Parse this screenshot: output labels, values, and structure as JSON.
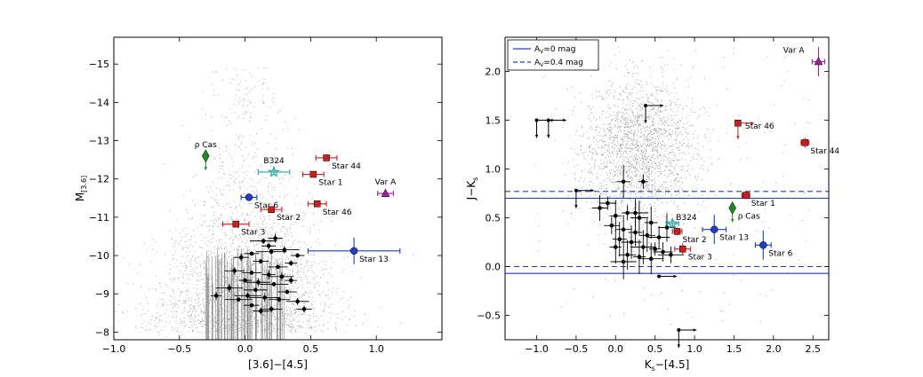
{
  "chart_data": [
    {
      "type": "scatter",
      "panel": "left",
      "xlabel": "[3.6]−[4.5]",
      "ylabel": "M",
      "ylabel_sub": "[3.6]",
      "xlim": [
        -1.0,
        1.5
      ],
      "ylim": [
        -7.8,
        -15.7
      ],
      "y_inverted": true,
      "xticks": [
        -1.0,
        -0.5,
        0.0,
        0.5,
        1.0
      ],
      "xtick_labels": [
        "−1.0",
        "−0.5",
        "0.0",
        "0.5",
        "1.0"
      ],
      "yticks": [
        -8,
        -9,
        -10,
        -11,
        -12,
        -13,
        -14,
        -15
      ],
      "ytick_labels": [
        "−8",
        "−9",
        "−10",
        "−11",
        "−12",
        "−13",
        "−14",
        "−15"
      ],
      "background": {
        "name": "field stars",
        "color": "#9a9a9a",
        "center_x": 0.0,
        "center_y": -9.5,
        "approx_count": 2600
      },
      "black_sources": {
        "name": "unlabeled variables",
        "color": "#000000",
        "points": [
          [
            0.23,
            -10.45
          ],
          [
            0.14,
            -10.38
          ],
          [
            0.05,
            -10.05
          ],
          [
            0.2,
            -10.1
          ],
          [
            0.3,
            -10.15
          ],
          [
            0.4,
            -10.0
          ],
          [
            -0.03,
            -9.95
          ],
          [
            0.12,
            -9.85
          ],
          [
            0.25,
            -9.7
          ],
          [
            0.35,
            -9.8
          ],
          [
            -0.08,
            -9.6
          ],
          [
            0.05,
            -9.55
          ],
          [
            0.18,
            -9.5
          ],
          [
            0.28,
            -9.45
          ],
          [
            0.0,
            -9.35
          ],
          [
            0.1,
            -9.3
          ],
          [
            0.22,
            -9.25
          ],
          [
            -0.12,
            -9.15
          ],
          [
            0.08,
            -9.1
          ],
          [
            0.32,
            -9.05
          ],
          [
            0.02,
            -8.95
          ],
          [
            0.15,
            -8.9
          ],
          [
            -0.22,
            -8.95
          ],
          [
            0.26,
            -8.85
          ],
          [
            0.4,
            -8.8
          ],
          [
            0.05,
            -8.7
          ],
          [
            0.2,
            -8.6
          ],
          [
            0.12,
            -8.55
          ],
          [
            0.45,
            -8.6
          ],
          [
            -0.05,
            -8.85
          ],
          [
            0.35,
            -9.35
          ],
          [
            0.18,
            -10.25
          ]
        ]
      },
      "highlighted": [
        {
          "label": "ρ Cas",
          "x": -0.3,
          "y": -12.6,
          "xerr": 0.0,
          "yerr": 0.0,
          "color": "#1f8a1f",
          "marker": "diamond",
          "arrow": "down",
          "label_pos": "top"
        },
        {
          "label": "B324",
          "x": 0.22,
          "y": -12.18,
          "xerr": 0.12,
          "yerr": 0.08,
          "color": "#27aaa5",
          "marker": "star",
          "label_pos": "top"
        },
        {
          "label": "Star 44",
          "x": 0.62,
          "y": -12.55,
          "xerr": 0.08,
          "yerr": 0.06,
          "color": "#cc1f1f",
          "marker": "square",
          "label_pos": "below-right"
        },
        {
          "label": "Star 1",
          "x": 0.52,
          "y": -12.12,
          "xerr": 0.08,
          "yerr": 0.06,
          "color": "#cc1f1f",
          "marker": "square",
          "label_pos": "below-right"
        },
        {
          "label": "Star 6",
          "x": 0.03,
          "y": -11.52,
          "xerr": 0.06,
          "yerr": 0.06,
          "color": "#1f3ccc",
          "marker": "circle",
          "label_pos": "below-right"
        },
        {
          "label": "Star 2",
          "x": 0.2,
          "y": -11.2,
          "xerr": 0.08,
          "yerr": 0.06,
          "color": "#cc1f1f",
          "marker": "square",
          "label_pos": "below-right"
        },
        {
          "label": "Star 46",
          "x": 0.55,
          "y": -11.35,
          "xerr": 0.07,
          "yerr": 0.06,
          "color": "#cc1f1f",
          "marker": "square",
          "label_pos": "below-right"
        },
        {
          "label": "Var A",
          "x": 1.07,
          "y": -11.62,
          "xerr": 0.06,
          "yerr": 0.1,
          "color": "#a020a0",
          "marker": "triangle",
          "label_pos": "top"
        },
        {
          "label": "Star 3",
          "x": -0.07,
          "y": -10.82,
          "xerr": 0.1,
          "yerr": 0.06,
          "color": "#cc1f1f",
          "marker": "square",
          "label_pos": "below-right"
        },
        {
          "label": "Star 13",
          "x": 0.83,
          "y": -10.12,
          "xerr": 0.35,
          "yerr": 0.35,
          "color": "#1f3ccc",
          "marker": "circle",
          "label_pos": "below-right"
        }
      ]
    },
    {
      "type": "scatter",
      "panel": "right",
      "xlabel": "K",
      "xlabel_sub": "s",
      "xlabel_rest": "−[4.5]",
      "ylabel": "J−K",
      "ylabel_sub": "s",
      "xlim": [
        -1.4,
        2.7
      ],
      "ylim": [
        -0.75,
        2.35
      ],
      "xticks": [
        -1.0,
        -0.5,
        0.0,
        0.5,
        1.0,
        1.5,
        2.0,
        2.5
      ],
      "xtick_labels": [
        "−1.0",
        "−0.5",
        "0.0",
        "0.5",
        "1.0",
        "1.5",
        "2.0",
        "2.5"
      ],
      "yticks": [
        -0.5,
        0.0,
        0.5,
        1.0,
        1.5,
        2.0
      ],
      "ytick_labels": [
        "−0.5",
        "0.0",
        "0.5",
        "1.0",
        "1.5",
        "2.0"
      ],
      "legend": {
        "position": "top-left",
        "entries": [
          {
            "label_a": "A",
            "label_sub": "V",
            "label_rest": "=0 mag",
            "style": "solid",
            "color": "#1f3ccc"
          },
          {
            "label_a": "A",
            "label_sub": "V",
            "label_rest": "=0.4 mag",
            "style": "dashed",
            "color": "#1f3ccc"
          }
        ]
      },
      "reference_lines": [
        {
          "y": 0.7,
          "style": "solid",
          "color": "#1f3ccc"
        },
        {
          "y": -0.07,
          "style": "solid",
          "color": "#1f3ccc"
        },
        {
          "y": 0.77,
          "style": "dashed",
          "color": "#1f3ccc"
        },
        {
          "y": 0.0,
          "style": "dashed",
          "color": "#1f3ccc"
        }
      ],
      "background": {
        "name": "field stars",
        "color": "#9a9a9a",
        "center_x": 0.3,
        "center_y": 1.2,
        "approx_count": 2600
      },
      "black_sources": {
        "name": "unlabeled variables",
        "color": "#000000",
        "points": [
          [
            0.1,
            0.87
          ],
          [
            0.35,
            0.87
          ],
          [
            -0.2,
            0.6
          ],
          [
            0.0,
            0.52
          ],
          [
            0.15,
            0.55
          ],
          [
            0.3,
            0.5
          ],
          [
            0.45,
            0.45
          ],
          [
            -0.05,
            0.42
          ],
          [
            0.1,
            0.38
          ],
          [
            0.25,
            0.35
          ],
          [
            0.4,
            0.32
          ],
          [
            0.55,
            0.3
          ],
          [
            0.05,
            0.28
          ],
          [
            0.2,
            0.25
          ],
          [
            0.35,
            0.2
          ],
          [
            0.5,
            0.18
          ],
          [
            0.6,
            0.15
          ],
          [
            0.15,
            0.12
          ],
          [
            0.3,
            0.1
          ],
          [
            0.45,
            0.08
          ],
          [
            0.7,
            0.12
          ],
          [
            0.0,
            0.2
          ],
          [
            0.25,
            0.55
          ],
          [
            -0.1,
            0.65
          ],
          [
            0.65,
            0.4
          ],
          [
            0.1,
            0.05
          ]
        ]
      },
      "limit_markers": [
        {
          "x": -1.0,
          "y": 1.5,
          "right": true,
          "down": true
        },
        {
          "x": -0.85,
          "y": 1.5,
          "right": true,
          "down": true
        },
        {
          "x": 0.38,
          "y": 1.65,
          "right": true,
          "down": true
        },
        {
          "x": -0.5,
          "y": 0.78,
          "right": true,
          "down": true
        },
        {
          "x": 0.8,
          "y": -0.65,
          "right": true,
          "down": true
        },
        {
          "x": 0.55,
          "y": -0.1,
          "right": true,
          "down": false
        }
      ],
      "highlighted": [
        {
          "label": "Var A",
          "x": 2.57,
          "y": 2.1,
          "xerr": 0.08,
          "yerr": 0.15,
          "color": "#a020a0",
          "marker": "triangle",
          "label_pos": "left"
        },
        {
          "label": "Star 46",
          "x": 1.55,
          "y": 1.47,
          "xerr": 0.0,
          "yerr": 0.0,
          "color": "#cc1f1f",
          "marker": "square",
          "arrow": "right-down",
          "label_pos": "below-right"
        },
        {
          "label": "Star 44",
          "x": 2.4,
          "y": 1.27,
          "xerr": 0.05,
          "yerr": 0.05,
          "color": "#cc1f1f",
          "marker": "square",
          "label_pos": "below-right"
        },
        {
          "label": "Star 1",
          "x": 1.65,
          "y": 0.73,
          "xerr": 0.05,
          "yerr": 0.04,
          "color": "#cc1f1f",
          "marker": "square",
          "label_pos": "below-right"
        },
        {
          "label": "ρ Cas",
          "x": 1.48,
          "y": 0.6,
          "xerr": 0.0,
          "yerr": 0.0,
          "color": "#1f8a1f",
          "marker": "diamond",
          "arrow": "down",
          "label_pos": "below-right"
        },
        {
          "label": "B324",
          "x": 0.72,
          "y": 0.44,
          "xerr": 0.08,
          "yerr": 0.05,
          "color": "#27aaa5",
          "marker": "star",
          "label_pos": "top-right"
        },
        {
          "label": "Star 2",
          "x": 0.78,
          "y": 0.36,
          "xerr": 0.06,
          "yerr": 0.04,
          "color": "#cc1f1f",
          "marker": "square",
          "label_pos": "below-right"
        },
        {
          "label": "Star 13",
          "x": 1.25,
          "y": 0.38,
          "xerr": 0.15,
          "yerr": 0.15,
          "color": "#1f3ccc",
          "marker": "circle",
          "label_pos": "below-right"
        },
        {
          "label": "Star 3",
          "x": 0.85,
          "y": 0.18,
          "xerr": 0.1,
          "yerr": 0.06,
          "color": "#cc1f1f",
          "marker": "square",
          "label_pos": "below-right"
        },
        {
          "label": "Star 6",
          "x": 1.87,
          "y": 0.22,
          "xerr": 0.1,
          "yerr": 0.15,
          "color": "#1f3ccc",
          "marker": "circle",
          "label_pos": "below-right"
        }
      ]
    }
  ]
}
